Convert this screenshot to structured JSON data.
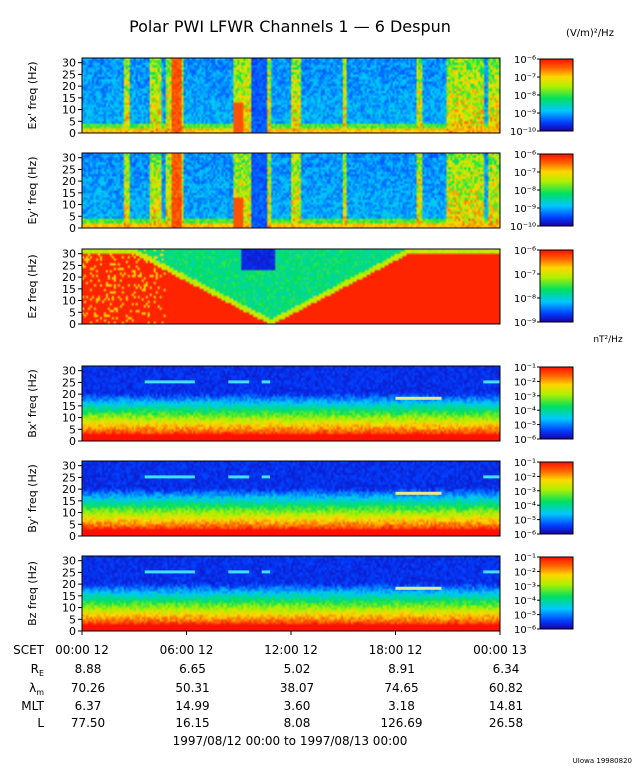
{
  "chart_data": {
    "type": "heatmap",
    "title": "Polar PWI LFWR Channels 1 — 6 Despun",
    "electric_units": "(V/m)²/Hz",
    "magnetic_units": "nT²/Hz",
    "yticks": [
      "0",
      "5",
      "10",
      "15",
      "20",
      "25",
      "30"
    ],
    "ylim": [
      0,
      32
    ],
    "panels": [
      {
        "name": "ex",
        "ylabel": "Ex' freq (Hz)",
        "cbar_ticks": [
          "10⁻¹⁰",
          "10⁻⁹",
          "10⁻⁸",
          "10⁻⁷",
          "10⁻⁶"
        ],
        "cbar_exp": [
          -10,
          -9,
          -8,
          -7,
          -6
        ]
      },
      {
        "name": "ey",
        "ylabel": "Ey' freq (Hz)",
        "cbar_ticks": [
          "10⁻¹⁰",
          "10⁻⁹",
          "10⁻⁸",
          "10⁻⁷",
          "10⁻⁶"
        ],
        "cbar_exp": [
          -10,
          -9,
          -8,
          -7,
          -6
        ]
      },
      {
        "name": "ez",
        "ylabel": "Ez freq (Hz)",
        "cbar_ticks": [
          "10⁻⁹",
          "10⁻⁸",
          "10⁻⁷",
          "10⁻⁶"
        ],
        "cbar_exp": [
          -9,
          -8,
          -7,
          -6
        ]
      },
      {
        "name": "bx",
        "ylabel": "Bx' freq (Hz)",
        "cbar_ticks": [
          "10⁻⁶",
          "10⁻⁵",
          "10⁻⁴",
          "10⁻³",
          "10⁻²",
          "10⁻¹"
        ],
        "cbar_exp": [
          -6,
          -5,
          -4,
          -3,
          -2,
          -1
        ]
      },
      {
        "name": "by",
        "ylabel": "By' freq (Hz)",
        "cbar_ticks": [
          "10⁻⁶",
          "10⁻⁵",
          "10⁻⁴",
          "10⁻³",
          "10⁻²",
          "10⁻¹"
        ],
        "cbar_exp": [
          -6,
          -5,
          -4,
          -3,
          -2,
          -1
        ]
      },
      {
        "name": "bz",
        "ylabel": "Bz freq (Hz)",
        "cbar_ticks": [
          "10⁻⁶",
          "10⁻⁵",
          "10⁻⁴",
          "10⁻³",
          "10⁻²",
          "10⁻¹"
        ],
        "cbar_exp": [
          -6,
          -5,
          -4,
          -3,
          -2,
          -1
        ]
      }
    ],
    "xaxis": {
      "ticks": [
        "00:00 12",
        "06:00 12",
        "12:00 12",
        "18:00 12",
        "00:00 13"
      ],
      "rows": [
        {
          "label": "SCET",
          "values": [
            "00:00 12",
            "06:00 12",
            "12:00 12",
            "18:00 12",
            "00:00 13"
          ]
        },
        {
          "label": "R",
          "sub": "E",
          "values": [
            "8.88",
            "6.65",
            "5.02",
            "8.91",
            "6.34"
          ]
        },
        {
          "label": "λ",
          "sub": "m",
          "values": [
            "70.26",
            "50.31",
            "38.07",
            "74.65",
            "60.82"
          ]
        },
        {
          "label": "MLT",
          "values": [
            "6.37",
            "14.99",
            "3.60",
            "3.18",
            "14.81"
          ]
        },
        {
          "label": "L",
          "values": [
            "77.50",
            "16.15",
            "8.08",
            "126.69",
            "26.58"
          ]
        }
      ],
      "range_label": "1997/08/12 00:00 to 1997/08/13 00:00"
    },
    "credit": "UIowa 19980820"
  }
}
